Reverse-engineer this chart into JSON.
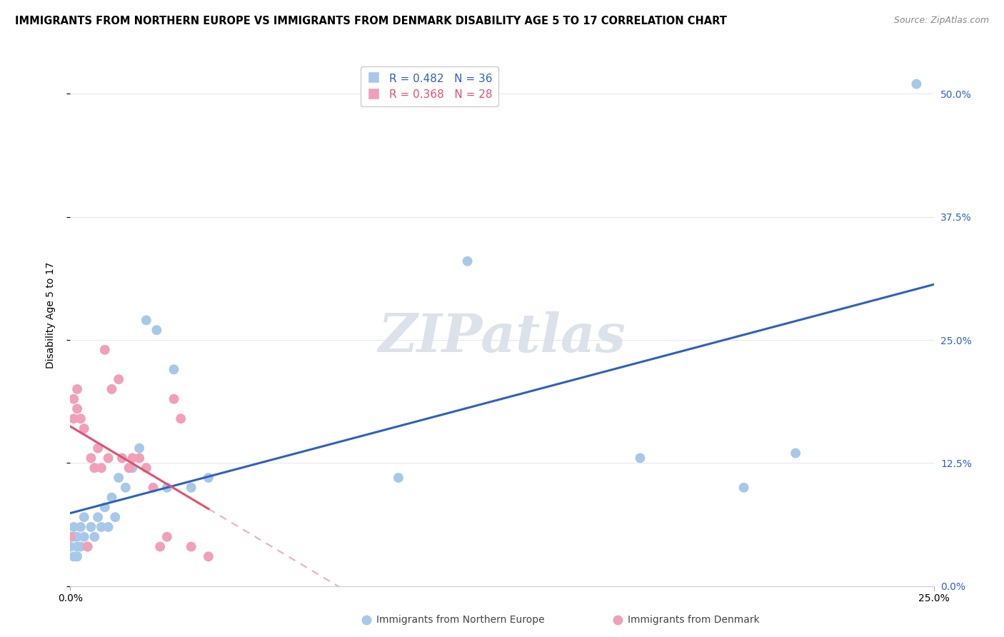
{
  "title": "IMMIGRANTS FROM NORTHERN EUROPE VS IMMIGRANTS FROM DENMARK DISABILITY AGE 5 TO 17 CORRELATION CHART",
  "source": "Source: ZipAtlas.com",
  "ylabel": "Disability Age 5 to 17",
  "xlim": [
    0.0,
    0.25
  ],
  "ylim": [
    0.0,
    0.55
  ],
  "ytick_labels": [
    "0.0%",
    "12.5%",
    "25.0%",
    "37.5%",
    "50.0%"
  ],
  "ytick_vals": [
    0.0,
    0.125,
    0.25,
    0.375,
    0.5
  ],
  "xtick_vals": [
    0.0,
    0.25
  ],
  "xtick_labels": [
    "0.0%",
    "25.0%"
  ],
  "R_blue": 0.482,
  "N_blue": 36,
  "R_pink": 0.368,
  "N_pink": 28,
  "blue_scatter_x": [
    0.0,
    0.001,
    0.001,
    0.001,
    0.002,
    0.002,
    0.002,
    0.003,
    0.003,
    0.004,
    0.004,
    0.005,
    0.006,
    0.007,
    0.008,
    0.009,
    0.01,
    0.011,
    0.012,
    0.013,
    0.014,
    0.016,
    0.018,
    0.02,
    0.022,
    0.025,
    0.028,
    0.03,
    0.035,
    0.04,
    0.095,
    0.115,
    0.165,
    0.195,
    0.21,
    0.245
  ],
  "blue_scatter_y": [
    0.04,
    0.05,
    0.03,
    0.06,
    0.04,
    0.05,
    0.03,
    0.04,
    0.06,
    0.05,
    0.07,
    0.04,
    0.06,
    0.05,
    0.07,
    0.06,
    0.08,
    0.06,
    0.09,
    0.07,
    0.11,
    0.1,
    0.12,
    0.14,
    0.27,
    0.26,
    0.1,
    0.22,
    0.1,
    0.11,
    0.11,
    0.33,
    0.13,
    0.1,
    0.135,
    0.51
  ],
  "pink_scatter_x": [
    0.0,
    0.001,
    0.001,
    0.002,
    0.002,
    0.003,
    0.004,
    0.005,
    0.006,
    0.007,
    0.008,
    0.009,
    0.01,
    0.011,
    0.012,
    0.014,
    0.015,
    0.017,
    0.018,
    0.02,
    0.022,
    0.024,
    0.026,
    0.028,
    0.03,
    0.032,
    0.035,
    0.04
  ],
  "pink_scatter_y": [
    0.05,
    0.19,
    0.17,
    0.2,
    0.18,
    0.17,
    0.16,
    0.04,
    0.13,
    0.12,
    0.14,
    0.12,
    0.24,
    0.13,
    0.2,
    0.21,
    0.13,
    0.12,
    0.13,
    0.13,
    0.12,
    0.1,
    0.04,
    0.05,
    0.19,
    0.17,
    0.04,
    0.03
  ],
  "blue_color": "#a8c8e8",
  "pink_color": "#f0a0b8",
  "blue_line_color": "#3060c0",
  "pink_line_color": "#e05070",
  "pink_dash_color": "#e8b0c0",
  "watermark_color": "#d8dfe8",
  "grid_color": "#e8e8e8",
  "title_fontsize": 10.5,
  "axis_label_fontsize": 10,
  "tick_fontsize": 10,
  "legend_fontsize": 11,
  "right_tick_color": "#3060c0",
  "legend_R_color_blue": "#3060c0",
  "legend_N_color_blue": "#3060c0",
  "legend_R_color_pink": "#e05070",
  "legend_N_color_pink": "#e05070"
}
